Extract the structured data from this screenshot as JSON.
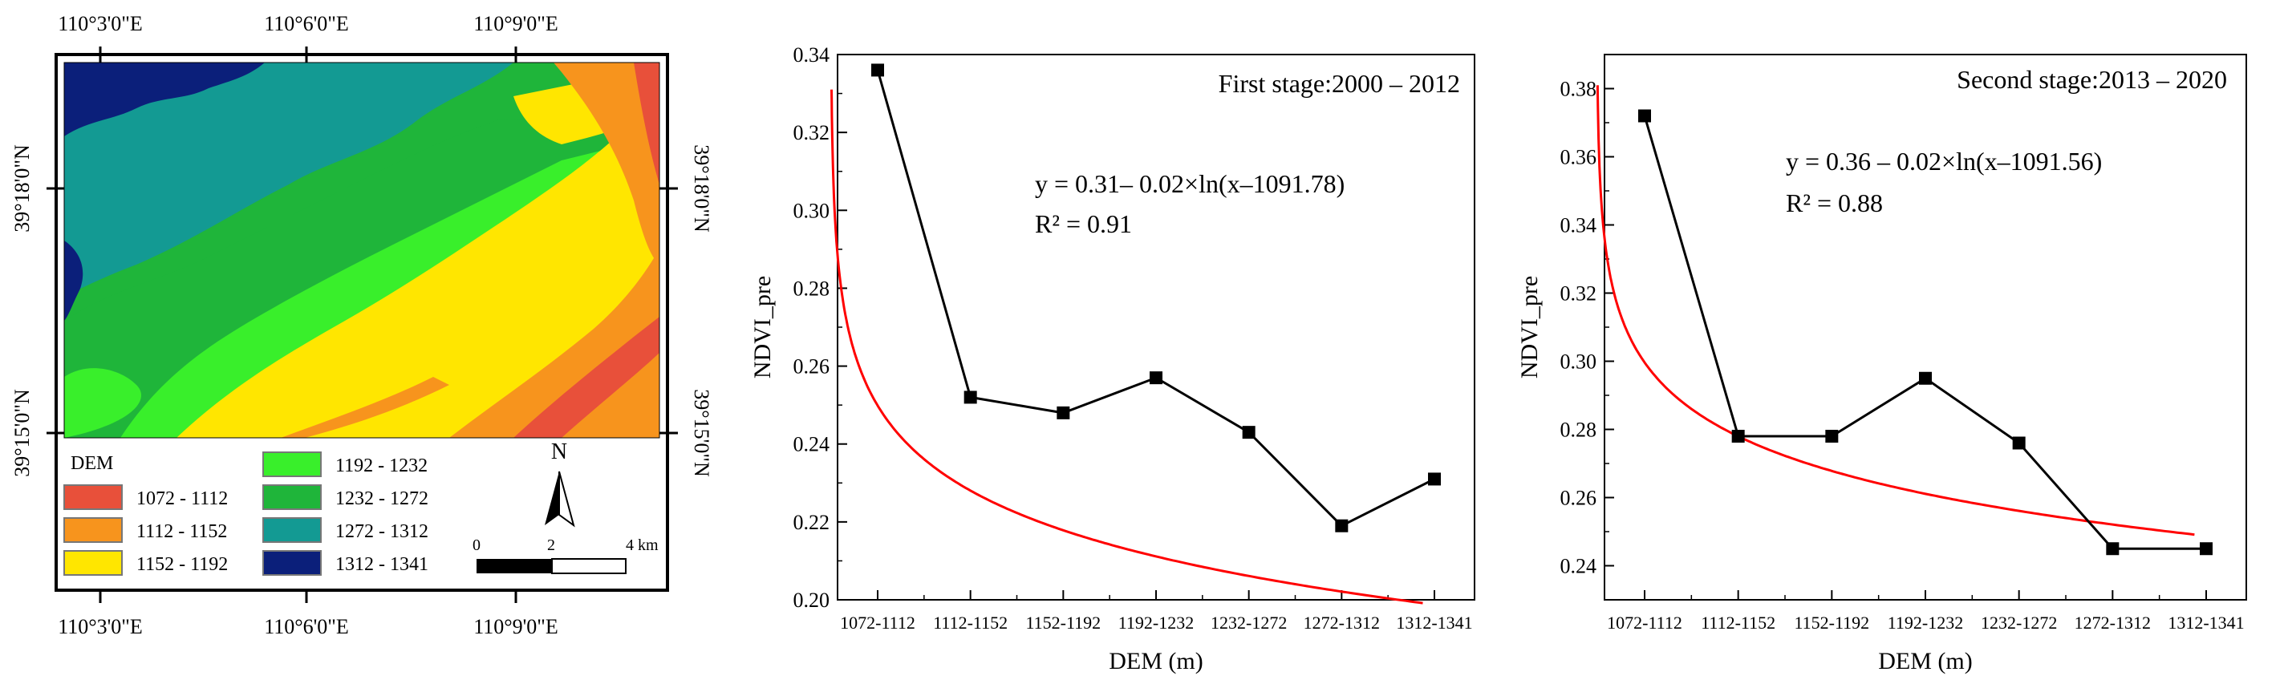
{
  "map": {
    "top_coords": [
      "110°3'0\"E",
      "110°6'0\"E",
      "110°9'0\"E"
    ],
    "bottom_coords": [
      "110°3'0\"E",
      "110°6'0\"E",
      "110°9'0\"E"
    ],
    "left_coords": [
      "39°18'0\"N",
      "39°15'0\"N"
    ],
    "right_coords": [
      "39°18'0\"N",
      "39°15'0\"N"
    ],
    "legend_title": "DEM",
    "legend": [
      {
        "label": "1072 - 1112",
        "color": "#e8503a"
      },
      {
        "label": "1112 - 1152",
        "color": "#f7941d"
      },
      {
        "label": "1152 - 1192",
        "color": "#ffe600"
      },
      {
        "label": "1192 - 1232",
        "color": "#39ef2b"
      },
      {
        "label": "1232 - 1272",
        "color": "#1fb53a"
      },
      {
        "label": "1272 - 1312",
        "color": "#139a93"
      },
      {
        "label": "1312 - 1341",
        "color": "#0b1f7a"
      }
    ],
    "north_label": "N",
    "scale": {
      "ticks": [
        "0",
        "2",
        "4 km"
      ]
    }
  },
  "chart_data": [
    {
      "type": "line",
      "title": "First stage:2000 – 2012",
      "xlabel": "DEM (m)",
      "ylabel": "NDVI_pre",
      "categories": [
        "1072-1112",
        "1112-1152",
        "1152-1192",
        "1192-1232",
        "1232-1272",
        "1272-1312",
        "1312-1341"
      ],
      "ylim": [
        0.2,
        0.34
      ],
      "yticks": [
        "0.20",
        "0.22",
        "0.24",
        "0.26",
        "0.28",
        "0.30",
        "0.32",
        "0.34"
      ],
      "series": [
        {
          "values": [
            0.336,
            0.252,
            0.248,
            0.257,
            0.243,
            0.219,
            0.231
          ],
          "color": "#000000"
        }
      ],
      "fit": {
        "a": 0.31,
        "b": 0.02,
        "c": 1091.78,
        "color": "#ff0000"
      },
      "equation": "y = 0.31– 0.02×ln(x–1091.78)",
      "r2": "R² = 0.91",
      "grid": false
    },
    {
      "type": "line",
      "title": "Second stage:2013 – 2020",
      "xlabel": "DEM (m)",
      "ylabel": "NDVI_pre",
      "categories": [
        "1072-1112",
        "1112-1152",
        "1152-1192",
        "1192-1232",
        "1232-1272",
        "1272-1312",
        "1312-1341"
      ],
      "ylim": [
        0.23,
        0.39
      ],
      "yticks": [
        "0.24",
        "0.26",
        "0.28",
        "0.30",
        "0.32",
        "0.34",
        "0.36",
        "0.38"
      ],
      "series": [
        {
          "values": [
            0.372,
            0.278,
            0.278,
            0.295,
            0.276,
            0.245,
            0.245
          ],
          "color": "#000000"
        }
      ],
      "fit": {
        "a": 0.36,
        "b": 0.02,
        "c": 1091.56,
        "color": "#ff0000"
      },
      "equation": "y = 0.36 – 0.02×ln(x–1091.56)",
      "r2": "R² = 0.88",
      "grid": false
    }
  ]
}
